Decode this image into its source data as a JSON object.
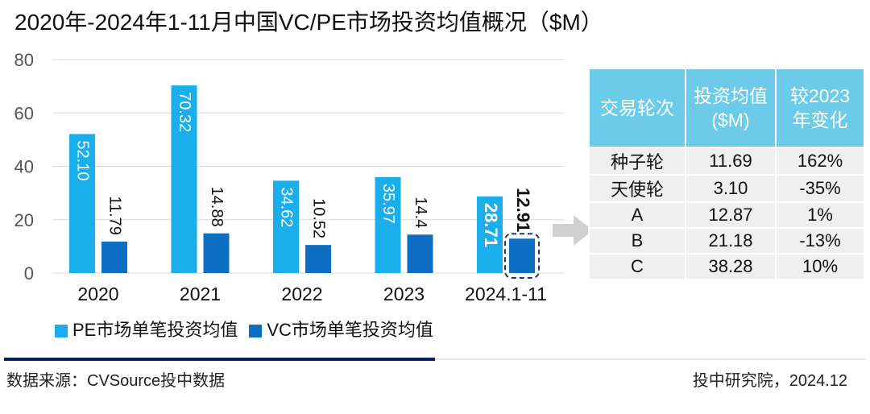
{
  "title": "2020年-2024年1-11月中国VC/PE市场投资均值概况（$M）",
  "chart_data": {
    "type": "bar",
    "title": "2020年-2024年1-11月中国VC/PE市场投资均值概况（$M）",
    "categories": [
      "2020",
      "2021",
      "2022",
      "2023",
      "2024.1-11"
    ],
    "series": [
      {
        "name": "PE市场单笔投资均值",
        "color": "#1aaeea",
        "values": [
          52.1,
          70.32,
          34.62,
          35.97,
          28.71
        ],
        "labels": [
          "52.10",
          "70.32",
          "34.62",
          "35.97",
          "28.71"
        ]
      },
      {
        "name": "VC市场单笔投资均值",
        "color": "#0e6fc2",
        "values": [
          11.79,
          14.88,
          10.52,
          14.4,
          12.91
        ],
        "labels": [
          "11.79",
          "14.88",
          "10.52",
          "14.4",
          "12.91"
        ]
      }
    ],
    "ylim": [
      0,
      80
    ],
    "yticks": [
      "0",
      "20",
      "40",
      "60",
      "80"
    ],
    "grid": true,
    "legend": "bottom"
  },
  "table": {
    "headers": [
      "交易轮次",
      "投资均值($M)",
      "较2023年变化"
    ],
    "header_lines": [
      [
        "交易轮次"
      ],
      [
        "投资均值",
        "($M)"
      ],
      [
        "较2023",
        "年变化"
      ]
    ],
    "rows": [
      [
        "种子轮",
        "11.69",
        "162%"
      ],
      [
        "天使轮",
        "3.10",
        "-35%"
      ],
      [
        "A",
        "12.87",
        "1%"
      ],
      [
        "B",
        "21.18",
        "-13%"
      ],
      [
        "C",
        "38.28",
        "10%"
      ]
    ]
  },
  "footer": {
    "source": "数据来源：CVSource投中数据",
    "credit": "投中研究院，2024.12"
  }
}
